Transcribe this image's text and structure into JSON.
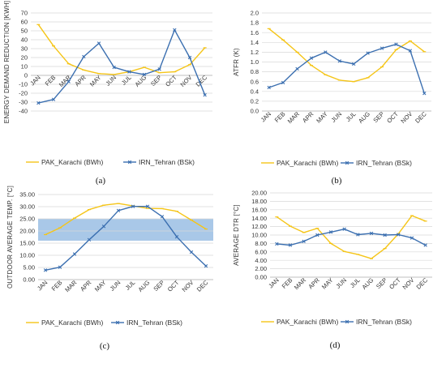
{
  "colors": {
    "karachi": "#f5c518",
    "tehran": "#3b6fb0",
    "band": "#a9c8e8",
    "grid": "#d9d9d9"
  },
  "chart_data": [
    {
      "type": "line",
      "panel": "(a)",
      "categories": [
        "JAN",
        "FEB",
        "MAR",
        "APR",
        "MAY",
        "JUN",
        "JUL",
        "AUG",
        "SEP",
        "OCT",
        "NOV",
        "DEC"
      ],
      "ylabel": "ENERGY DEMAND REDUCTION [KWH]",
      "ylim": [
        -40,
        70
      ],
      "yticks": [
        "-40",
        "-30",
        "-20",
        "-10",
        "0",
        "10",
        "20",
        "30",
        "40",
        "50",
        "60",
        "70"
      ],
      "grid": true,
      "legend_position": "bottom",
      "series": [
        {
          "name": "PAK_Karachi (BWh)",
          "values": [
            57,
            33,
            13,
            6,
            2,
            1,
            4,
            9,
            3,
            4,
            12,
            31
          ]
        },
        {
          "name": "IRN_Tehran (BSk)",
          "values": [
            -31,
            -27,
            -7,
            21,
            36,
            9,
            4,
            1,
            7,
            51,
            20,
            -22
          ]
        }
      ]
    },
    {
      "type": "line",
      "panel": "(b)",
      "categories": [
        "JAN",
        "FEB",
        "MAR",
        "APR",
        "MAY",
        "JUN",
        "JUL",
        "AUG",
        "SEP",
        "OCT",
        "NOV",
        "DEC"
      ],
      "ylabel": "ATFR (K)",
      "ylim": [
        0,
        2
      ],
      "yticks": [
        "0.0",
        "0.2",
        "0.4",
        "0.6",
        "0.8",
        "1.0",
        "1.2",
        "1.4",
        "1.6",
        "1.8",
        "2.0"
      ],
      "grid": true,
      "legend_position": "bottom",
      "series": [
        {
          "name": "PAK_Karachi (BWh)",
          "values": [
            1.68,
            1.45,
            1.2,
            0.93,
            0.74,
            0.63,
            0.6,
            0.68,
            0.9,
            1.25,
            1.43,
            1.21
          ]
        },
        {
          "name": "IRN_Tehran (BSk)",
          "values": [
            0.48,
            0.58,
            0.86,
            1.08,
            1.2,
            1.02,
            0.96,
            1.18,
            1.28,
            1.36,
            1.23,
            0.36
          ]
        }
      ]
    },
    {
      "type": "line",
      "panel": "(c)",
      "categories": [
        "JAN",
        "FEB",
        "MAR",
        "APR",
        "MAY",
        "JUN",
        "JUL",
        "AUG",
        "SEP",
        "OCT",
        "NOV",
        "DEC"
      ],
      "ylabel": "OUTDOOR AVERAGE TEMP. [°C]",
      "ylim": [
        0,
        35
      ],
      "yticks": [
        "0.00",
        "5.00",
        "10.00",
        "15.00",
        "20.00",
        "25.00",
        "30.00",
        "35.00"
      ],
      "band": [
        16,
        25
      ],
      "grid": true,
      "legend_position": "bottom",
      "series": [
        {
          "name": "PAK_Karachi (BWh)",
          "values": [
            18.5,
            21.3,
            25.3,
            28.8,
            30.6,
            31.3,
            30.3,
            29.3,
            29.2,
            28.1,
            24.5,
            20.8
          ]
        },
        {
          "name": "IRN_Tehran (BSk)",
          "values": [
            3.9,
            5.1,
            10.5,
            16.4,
            21.9,
            28.4,
            30.1,
            30.1,
            25.9,
            17.6,
            11.3,
            5.6
          ]
        }
      ]
    },
    {
      "type": "line",
      "panel": "(d)",
      "categories": [
        "JAN",
        "FEB",
        "MAR",
        "APR",
        "MAY",
        "JUN",
        "JUL",
        "AUG",
        "SEP",
        "OCT",
        "NOV",
        "DEC"
      ],
      "ylabel": "AVERAGE DTR [°C]",
      "ylim": [
        0,
        20
      ],
      "yticks": [
        "0.00",
        "2.00",
        "4.00",
        "6.00",
        "8.00",
        "10.00",
        "12.00",
        "14.00",
        "16.00",
        "18.00",
        "20.00"
      ],
      "grid": true,
      "legend_position": "bottom",
      "series": [
        {
          "name": "PAK_Karachi (BWh)",
          "values": [
            14.3,
            12.1,
            10.6,
            11.6,
            8.0,
            6.1,
            5.4,
            4.4,
            6.8,
            10.3,
            14.6,
            13.3
          ]
        },
        {
          "name": "IRN_Tehran (BSk)",
          "values": [
            7.9,
            7.6,
            8.5,
            10.0,
            10.7,
            11.4,
            10.1,
            10.4,
            10.0,
            10.1,
            9.3,
            7.6
          ]
        }
      ]
    }
  ]
}
